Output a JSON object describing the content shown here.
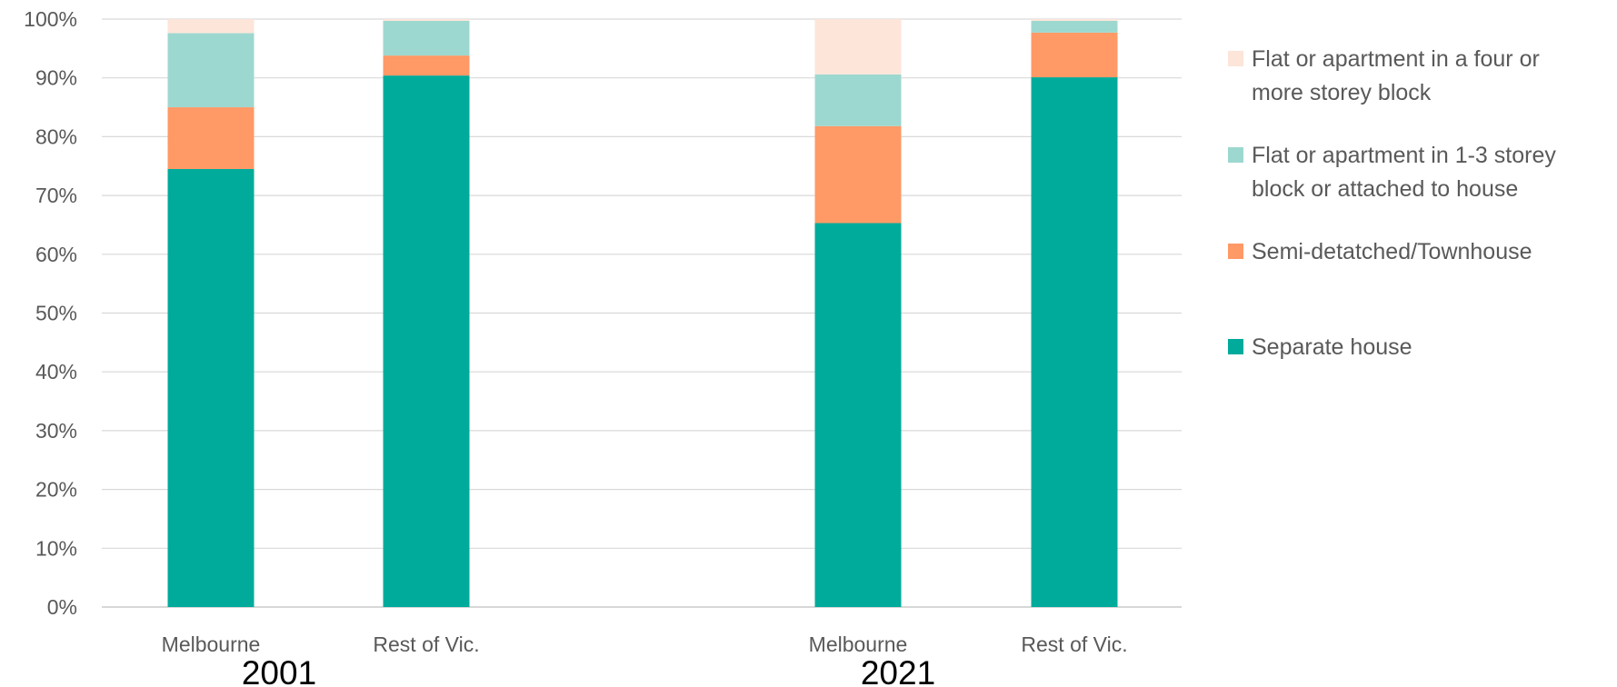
{
  "chart_data": {
    "type": "bar",
    "stacked": true,
    "groups": [
      "2001",
      "2021"
    ],
    "categories": [
      "Melbourne",
      "Rest of Vic.",
      "Melbourne",
      "Rest of Vic."
    ],
    "category_groups": [
      "2001",
      "2001",
      "2021",
      "2021"
    ],
    "series": [
      {
        "name": "Separate house",
        "color": "#00ab9b",
        "values": [
          74.5,
          90.4,
          65.3,
          90.1
        ]
      },
      {
        "name": "Semi-detatched/Townhouse",
        "color": "#ff9966",
        "values": [
          10.5,
          3.4,
          16.5,
          7.6
        ]
      },
      {
        "name": "Flat or apartment in 1-3 storey block or attached to house",
        "color": "#9dd8d0",
        "values": [
          12.6,
          5.9,
          8.8,
          2.0
        ]
      },
      {
        "name": "Flat or apartment in a four or more storey block",
        "color": "#fde5d9",
        "values": [
          2.4,
          0.3,
          9.4,
          0.3
        ]
      }
    ],
    "ylim": [
      0,
      100
    ],
    "yticks": [
      "0%",
      "10%",
      "20%",
      "30%",
      "40%",
      "50%",
      "60%",
      "70%",
      "80%",
      "90%",
      "100%"
    ],
    "grid": true,
    "legend": {
      "position": "right",
      "items": [
        {
          "lines": [
            "Flat or apartment in a four or",
            "more storey block"
          ],
          "color": "#fde5d9"
        },
        {
          "lines": [
            "Flat or apartment in 1-3 storey",
            "block or attached to house"
          ],
          "color": "#9dd8d0"
        },
        {
          "lines": [
            "Semi-detatched/Townhouse"
          ],
          "color": "#ff9966"
        },
        {
          "lines": [
            "Separate house"
          ],
          "color": "#00ab9b"
        }
      ]
    }
  }
}
